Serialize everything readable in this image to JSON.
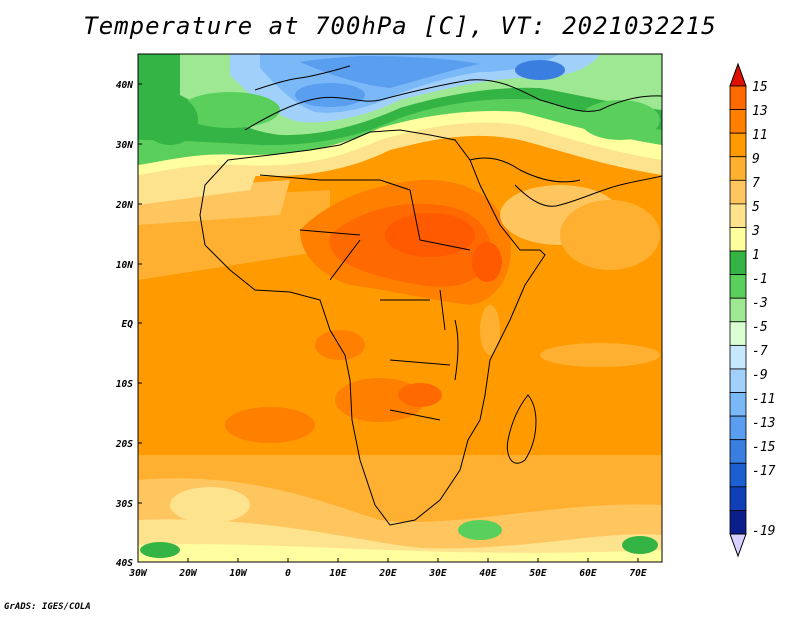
{
  "title": "Temperature at 700hPa [C], VT: 2021032215",
  "credit": "GrADS: IGES/COLA",
  "map": {
    "variable": "Temperature at 700hPa",
    "units": "C",
    "valid_time": "2021032215",
    "lon_range": [
      -30,
      75
    ],
    "lat_range": [
      -40,
      45
    ],
    "lat_ticks": [
      "40N",
      "30N",
      "20N",
      "10N",
      "EQ",
      "10S",
      "20S",
      "30S",
      "40S"
    ],
    "lon_ticks": [
      "30W",
      "20W",
      "10W",
      "0",
      "10E",
      "20E",
      "30E",
      "40E",
      "50E",
      "60E",
      "70E"
    ]
  },
  "colorbar": {
    "labels": [
      "15",
      "13",
      "11",
      "9",
      "7",
      "5",
      "3",
      "1",
      "-1",
      "-3",
      "-5",
      "-7",
      "-9",
      "-11",
      "-13",
      "-15",
      "-17",
      "-19"
    ],
    "colors": [
      "#ff6a00",
      "#ff7f00",
      "#ff9a00",
      "#ffb030",
      "#ffc660",
      "#fee38f",
      "#ffffa0",
      "#34b444",
      "#5bcf5b",
      "#9fe893",
      "#d9ffd3",
      "#c7e9ff",
      "#a1d1fb",
      "#7ab8f7",
      "#5a9ef0",
      "#3a7ee0",
      "#1c5fd1",
      "#1040b8",
      "#0a1f8c"
    ],
    "top_color": "#e01000",
    "bottom_color": "#d8d0ff"
  },
  "colors": {
    "ocean_warm": "#ffa633",
    "land_hot": "#ff5a00",
    "cold_north": "#3a7ee0",
    "coastline": "#000000"
  }
}
